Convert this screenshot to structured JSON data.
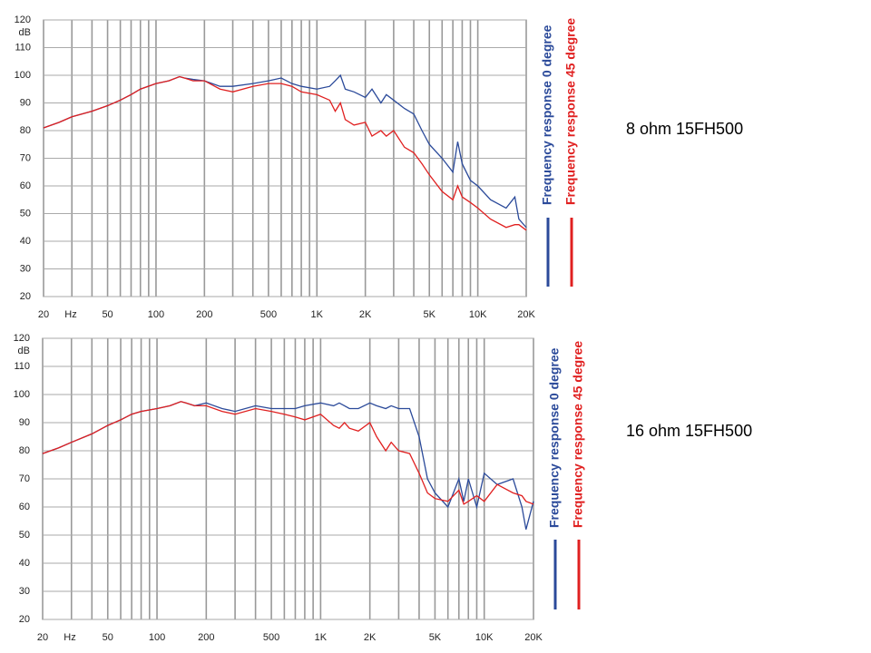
{
  "chart_data": [
    {
      "type": "line",
      "annotation": "8 ohm  15FH500",
      "ylabel": "dB",
      "xlabel": "Hz",
      "log_x": true,
      "grid": true,
      "legend": "right",
      "xlim": [
        20,
        20000
      ],
      "ylim": [
        20,
        120
      ],
      "xticks": [
        20,
        50,
        100,
        200,
        500,
        {
          "value": 1000,
          "label": "1K"
        },
        {
          "value": 2000,
          "label": "2K"
        },
        {
          "value": 5000,
          "label": "5K"
        },
        {
          "value": 10000,
          "label": "10K"
        },
        {
          "value": 20000,
          "label": "20K"
        }
      ],
      "yticks": [
        20,
        30,
        40,
        50,
        60,
        70,
        80,
        90,
        100,
        110,
        120
      ],
      "x": [
        20,
        25,
        30,
        40,
        50,
        60,
        70,
        80,
        100,
        120,
        140,
        150,
        170,
        200,
        250,
        300,
        400,
        500,
        600,
        700,
        800,
        1000,
        1200,
        1300,
        1400,
        1500,
        1700,
        2000,
        2200,
        2500,
        2700,
        3000,
        3500,
        4000,
        4500,
        5000,
        6000,
        7000,
        7500,
        8000,
        9000,
        10000,
        12000,
        15000,
        17000,
        18000,
        20000
      ],
      "series": [
        {
          "name": "Frequency response 0 degree",
          "color": "#2b4a9a",
          "values": [
            81,
            83,
            85,
            87,
            89,
            91,
            93,
            95,
            97,
            98,
            99.5,
            99,
            98.5,
            98,
            96,
            96,
            97,
            98,
            99,
            97,
            96,
            95,
            96,
            98,
            100,
            95,
            94,
            92,
            95,
            90,
            93,
            91,
            88,
            86,
            80,
            75,
            70,
            65,
            76,
            68,
            62,
            60,
            55,
            52,
            56,
            48,
            45
          ]
        },
        {
          "name": "Frequency response 45 degree",
          "color": "#e02020",
          "values": [
            81,
            83,
            85,
            87,
            89,
            91,
            93,
            95,
            97,
            98,
            99.5,
            99,
            98,
            98,
            95,
            94,
            96,
            97,
            97,
            96,
            94,
            93,
            91,
            87,
            90,
            84,
            82,
            83,
            78,
            80,
            78,
            80,
            74,
            72,
            68,
            64,
            58,
            55,
            60,
            56,
            54,
            52,
            48,
            45,
            46,
            46,
            44
          ]
        }
      ]
    },
    {
      "type": "line",
      "annotation": "16 ohm  15FH500",
      "ylabel": "dB",
      "xlabel": "Hz",
      "log_x": true,
      "grid": true,
      "legend": "right",
      "xlim": [
        20,
        20000
      ],
      "ylim": [
        20,
        120
      ],
      "xticks": [
        20,
        50,
        100,
        200,
        500,
        {
          "value": 1000,
          "label": "1K"
        },
        {
          "value": 2000,
          "label": "2K"
        },
        {
          "value": 5000,
          "label": "5K"
        },
        {
          "value": 10000,
          "label": "10K"
        },
        {
          "value": 20000,
          "label": "20K"
        }
      ],
      "yticks": [
        20,
        30,
        40,
        50,
        60,
        70,
        80,
        90,
        100,
        110,
        120
      ],
      "x": [
        20,
        25,
        30,
        40,
        50,
        60,
        70,
        80,
        100,
        120,
        140,
        150,
        170,
        200,
        250,
        300,
        400,
        500,
        600,
        700,
        800,
        1000,
        1200,
        1300,
        1400,
        1500,
        1700,
        2000,
        2200,
        2500,
        2700,
        3000,
        3500,
        4000,
        4500,
        5000,
        6000,
        7000,
        7500,
        8000,
        9000,
        10000,
        12000,
        15000,
        17000,
        18000,
        20000
      ],
      "series": [
        {
          "name": "Frequency response 0 degree",
          "color": "#2b4a9a",
          "values": [
            79,
            81,
            83,
            86,
            89,
            91,
            93,
            94,
            95,
            96,
            97.5,
            97,
            96,
            97,
            95,
            94,
            96,
            95,
            95,
            95,
            96,
            97,
            96,
            97,
            96,
            95,
            95,
            97,
            96,
            95,
            96,
            95,
            95,
            85,
            70,
            65,
            60,
            70,
            62,
            70,
            60,
            72,
            68,
            70,
            60,
            52,
            62
          ]
        },
        {
          "name": "Frequency response 45 degree",
          "color": "#e02020",
          "values": [
            79,
            81,
            83,
            86,
            89,
            91,
            93,
            94,
            95,
            96,
            97.5,
            97,
            96,
            96,
            94,
            93,
            95,
            94,
            93,
            92,
            91,
            93,
            89,
            88,
            90,
            88,
            87,
            90,
            85,
            80,
            83,
            80,
            79,
            72,
            65,
            63,
            62,
            66,
            61,
            62,
            64,
            62,
            68,
            65,
            64,
            62,
            61
          ]
        }
      ]
    }
  ]
}
